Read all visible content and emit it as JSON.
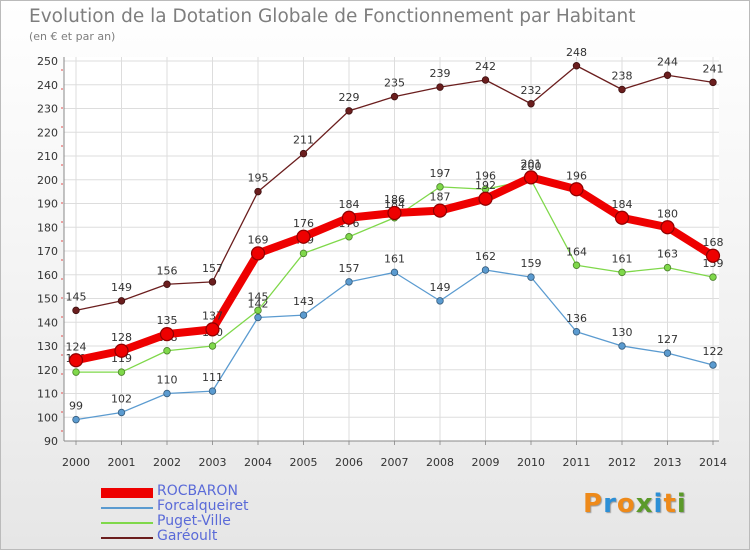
{
  "title": "Evolution de la Dotation Globale de Fonctionnement par Habitant",
  "subtitle": "(en € et par an)",
  "brand": {
    "letters": [
      "P",
      "r",
      "o",
      "x",
      "i",
      "t",
      "i"
    ],
    "colors": [
      "#ee8a1a",
      "#2c8fd6",
      "#ee8a1a",
      "#5b9a2a",
      "#2c8fd6",
      "#ee8a1a",
      "#5b9a2a"
    ]
  },
  "chart_data": {
    "type": "line",
    "title": "Evolution de la Dotation Globale de Fonctionnement par Habitant",
    "subtitle": "(en € et par an)",
    "x": [
      "2000",
      "2001",
      "2002",
      "2003",
      "2004",
      "2005",
      "2006",
      "2007",
      "2008",
      "2009",
      "2010",
      "2011",
      "2012",
      "2013",
      "2014"
    ],
    "yticks": [
      90,
      100,
      110,
      120,
      130,
      140,
      150,
      160,
      170,
      180,
      190,
      200,
      210,
      220,
      230,
      240,
      250
    ],
    "ylim": [
      90,
      250
    ],
    "grid": true,
    "legend_position": "bottom-left",
    "series": [
      {
        "name": "Garéoult",
        "color": "#6b1e1e",
        "values": [
          145,
          149,
          156,
          157,
          195,
          211,
          229,
          235,
          239,
          242,
          232,
          248,
          238,
          244,
          241
        ]
      },
      {
        "name": "Forcalqueiret",
        "color": "#5b9bd0",
        "values": [
          99,
          102,
          110,
          111,
          142,
          143,
          157,
          161,
          149,
          162,
          159,
          136,
          130,
          127,
          122
        ]
      },
      {
        "name": "Puget-Ville",
        "color": "#7fd84a",
        "values": [
          119,
          119,
          128,
          130,
          145,
          169,
          176,
          184,
          197,
          196,
          200,
          164,
          161,
          163,
          159
        ]
      },
      {
        "name": "ROCBARON",
        "color": "#ee0000",
        "values": [
          124,
          128,
          135,
          137,
          169,
          176,
          184,
          186,
          187,
          192,
          201,
          196,
          184,
          180,
          168
        ]
      }
    ],
    "legend_order": [
      "ROCBARON",
      "Forcalqueiret",
      "Puget-Ville",
      "Garéoult"
    ]
  }
}
